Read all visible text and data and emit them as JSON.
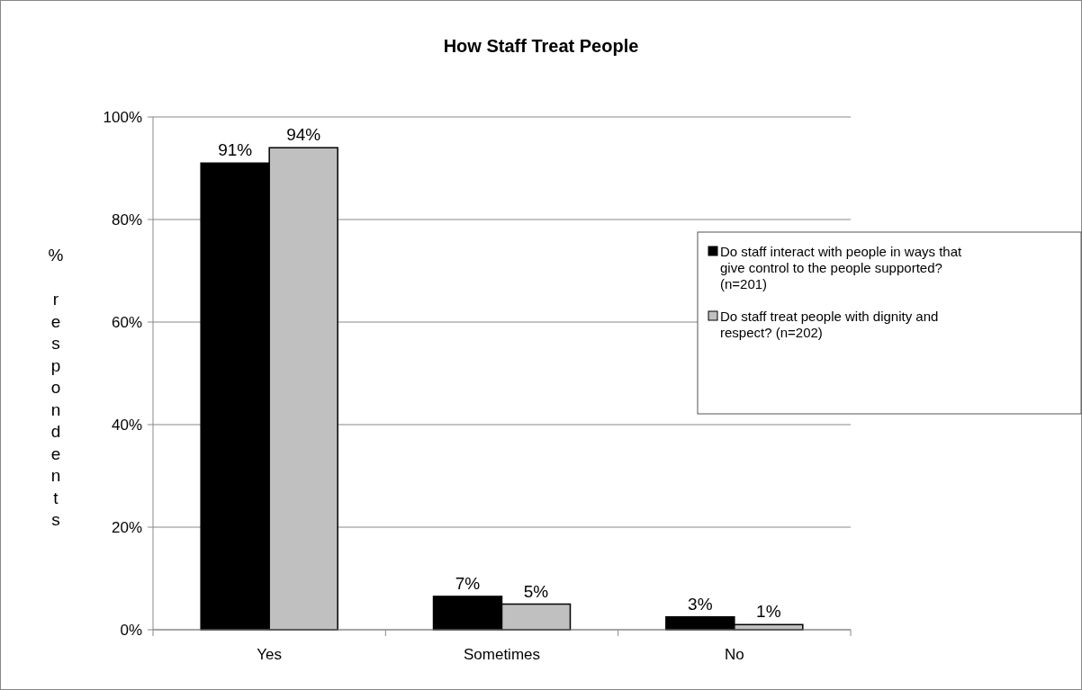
{
  "chart_data": {
    "type": "bar",
    "title": "How Staff Treat People",
    "ylabel": "% respondents",
    "categories": [
      "Yes",
      "Sometimes",
      "No"
    ],
    "series": [
      {
        "name": "Do staff interact with people in ways that give control to the people supported? (n=201)",
        "color": "#000000",
        "values": [
          91,
          6.5,
          2.5
        ],
        "value_labels": [
          "91%",
          "7%",
          "3%"
        ]
      },
      {
        "name": "Do staff treat people with dignity and respect? (n=202)",
        "color": "#c0c0c0",
        "values": [
          94,
          5,
          1
        ],
        "value_labels": [
          "94%",
          "5%",
          "1%"
        ]
      }
    ],
    "ylim": [
      0,
      100
    ],
    "yticks": [
      {
        "value": 0,
        "label": "0%"
      },
      {
        "value": 20,
        "label": "20%"
      },
      {
        "value": 40,
        "label": "40%"
      },
      {
        "value": 60,
        "label": "60%"
      },
      {
        "value": 80,
        "label": "80%"
      },
      {
        "value": 100,
        "label": "100%"
      }
    ],
    "grid": "y",
    "legend": "right"
  }
}
